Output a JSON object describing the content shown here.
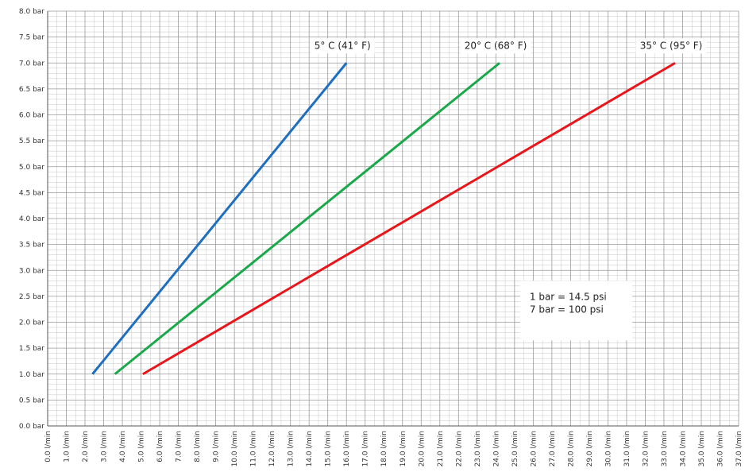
{
  "chart_data": {
    "type": "line",
    "title": "",
    "xlabel": "",
    "ylabel": "",
    "xlim": [
      0,
      37
    ],
    "ylim": [
      0,
      8
    ],
    "x_minor_step": 0.5,
    "y_minor_step": 0.1,
    "grid": true,
    "x_ticks": [
      "0.0 l/min",
      "1.0 l/min",
      "2.0 l/min",
      "3.0 l/min",
      "4.0 l/min",
      "5.0 l/min",
      "6.0 l/min",
      "7.0 l/min",
      "8.0 l/min",
      "9.0 l/min",
      "10.0 l/min",
      "11.0 l/min",
      "12.0 l/min",
      "13.0 l/min",
      "14.0 l/min",
      "15.0 l/min",
      "16.0 l/min",
      "17.0 l/min",
      "18.0 l/min",
      "19.0 l/min",
      "20.0 l/min",
      "21.0 l/min",
      "22.0 l/min",
      "23.0 l/min",
      "24.0 l/min",
      "25.0 l/min",
      "26.0 l/min",
      "27.0 l/min",
      "28.0 l/min",
      "29.0 l/min",
      "30.0 l/min",
      "31.0 l/min",
      "32.0 l/min",
      "33.0 l/min",
      "34.0 l/min",
      "35.0 l/min",
      "36.0 l/min",
      "37.0 l/min"
    ],
    "y_ticks": [
      "0.0 bar",
      "0.5 bar",
      "1.0 bar",
      "1.5 bar",
      "2.0 bar",
      "2.5 bar",
      "3.0 bar",
      "3.5 bar",
      "4.0 bar",
      "4.5 bar",
      "5.0 bar",
      "5.5 bar",
      "6.0 bar",
      "6.5 bar",
      "7.0 bar",
      "7.5 bar",
      "8.0 bar"
    ],
    "series": [
      {
        "name": "5° C (41° F)",
        "color": "#1f6fc0",
        "points": [
          [
            2.4,
            1.0
          ],
          [
            16.0,
            7.0
          ]
        ]
      },
      {
        "name": "20° C (68° F)",
        "color": "#1aa84a",
        "points": [
          [
            3.6,
            1.0
          ],
          [
            24.2,
            7.0
          ]
        ]
      },
      {
        "name": "35° C (95° F)",
        "color": "#e8161b",
        "points": [
          [
            5.1,
            1.0
          ],
          [
            33.6,
            7.0
          ]
        ]
      }
    ],
    "annotation": {
      "lines": [
        "1 bar = 14.5 psi",
        "7 bar = 100 psi"
      ]
    }
  }
}
